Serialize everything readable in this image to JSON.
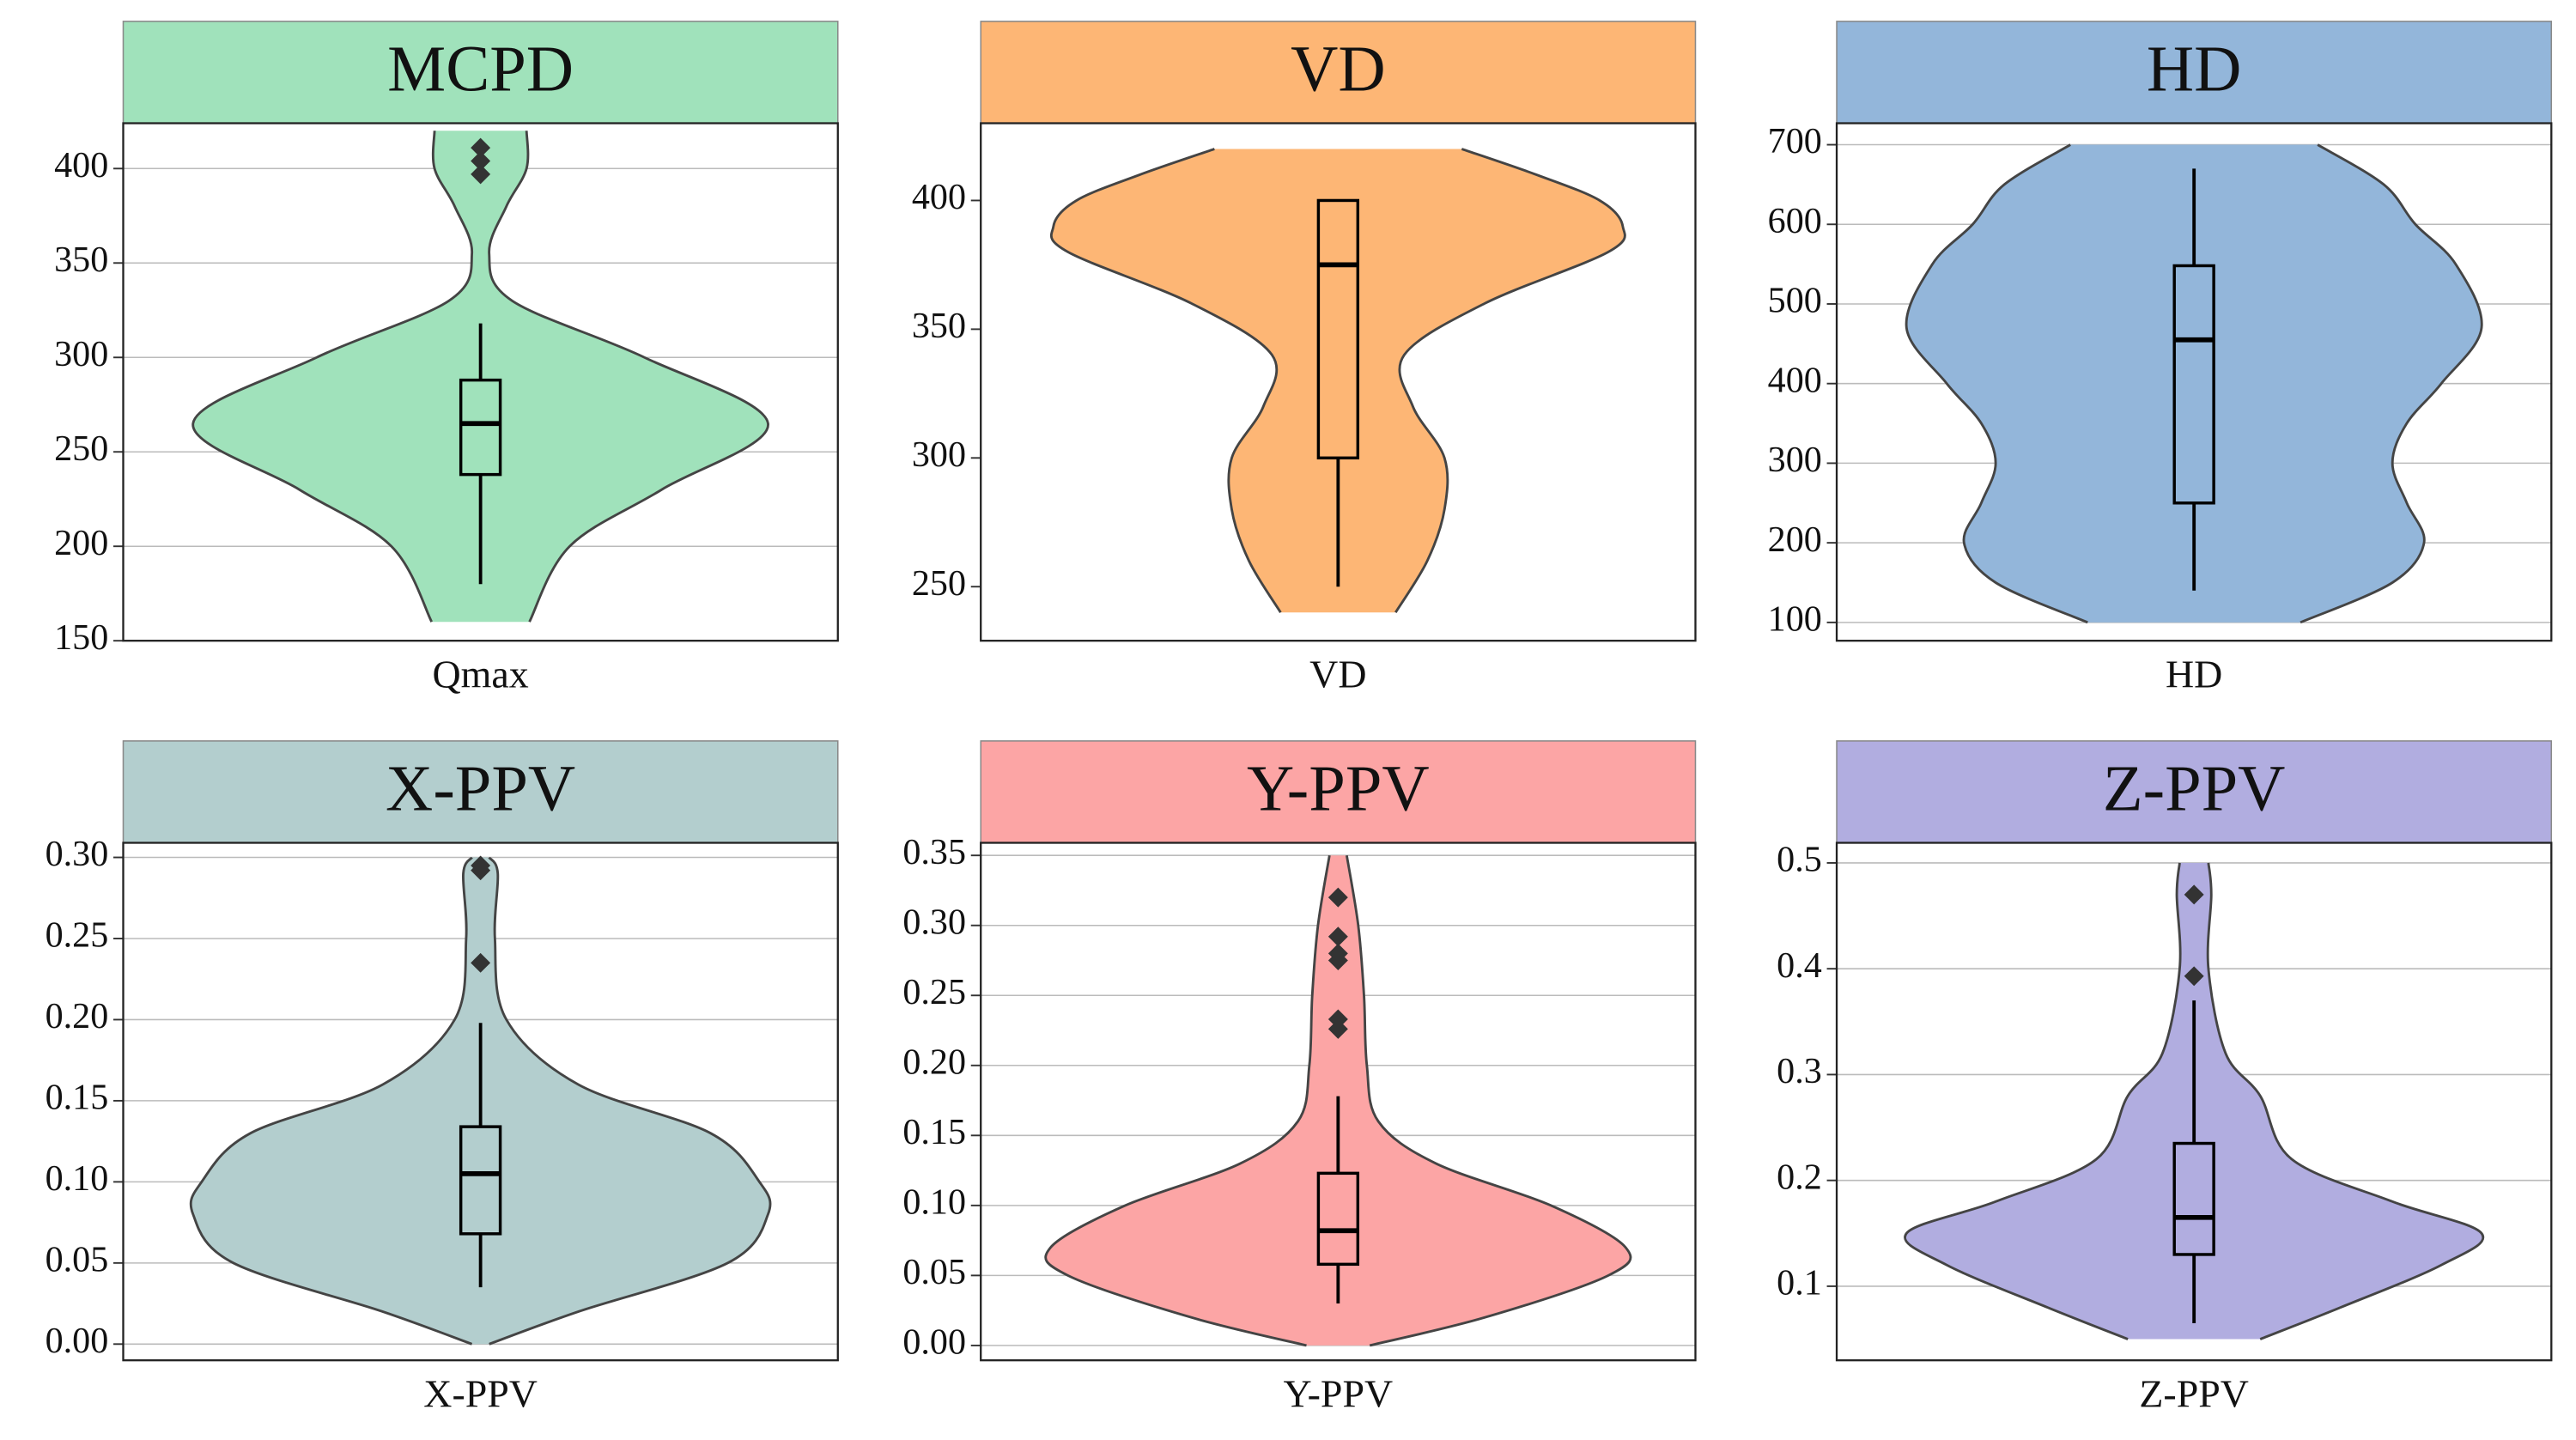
{
  "chart_data": [
    {
      "type": "violin",
      "title": "MCPD",
      "categories": [
        "Qmax"
      ],
      "color": "#a0e2bb",
      "ylim": [
        150,
        424
      ],
      "yticks": [
        150,
        200,
        250,
        300,
        350,
        400
      ],
      "grid": true,
      "box": {
        "whisker_low": 180,
        "q1": 238,
        "median": 265,
        "q3": 288,
        "whisker_high": 318
      },
      "outliers": [
        397,
        404,
        411
      ],
      "density": {
        "y": [
          160,
          200,
          230,
          265,
          300,
          330,
          355,
          380,
          400,
          420
        ],
        "width": [
          0.17,
          0.31,
          0.63,
          1.0,
          0.57,
          0.11,
          0.03,
          0.09,
          0.16,
          0.16
        ]
      }
    },
    {
      "type": "violin",
      "title": "VD",
      "categories": [
        "VD"
      ],
      "color": "#fdb675",
      "ylim": [
        229,
        430
      ],
      "yticks": [
        250,
        300,
        350,
        400
      ],
      "grid": false,
      "box": {
        "whisker_low": 250,
        "q1": 300,
        "median": 375,
        "q3": 400,
        "whisker_high": 400
      },
      "outliers": [],
      "density": {
        "y": [
          240,
          260,
          280,
          300,
          320,
          340,
          360,
          380,
          390,
          400,
          410,
          420
        ],
        "width": [
          0.2,
          0.31,
          0.37,
          0.37,
          0.26,
          0.23,
          0.51,
          0.94,
          0.99,
          0.91,
          0.69,
          0.43
        ]
      }
    },
    {
      "type": "violin",
      "title": "HD",
      "categories": [
        "HD"
      ],
      "color": "#93b6da",
      "ylim": [
        77,
        727
      ],
      "yticks": [
        100,
        200,
        300,
        400,
        500,
        600,
        700
      ],
      "grid": true,
      "box": {
        "whisker_low": 140,
        "q1": 250,
        "median": 455,
        "q3": 548,
        "whisker_high": 670
      },
      "outliers": [],
      "density": {
        "y": [
          100,
          150,
          200,
          250,
          300,
          350,
          400,
          470,
          550,
          600,
          650,
          700
        ],
        "width": [
          0.37,
          0.69,
          0.8,
          0.74,
          0.69,
          0.74,
          0.86,
          1.0,
          0.91,
          0.77,
          0.66,
          0.43
        ]
      }
    },
    {
      "type": "violin",
      "title": "X-PPV",
      "categories": [
        "X-PPV"
      ],
      "color": "#b3cece",
      "ylim": [
        -0.01,
        0.309
      ],
      "yticks": [
        {
          "value": 0,
          "label": "0.00"
        },
        {
          "value": 0.05,
          "label": "0.05"
        },
        {
          "value": 0.1,
          "label": "0.10"
        },
        {
          "value": 0.15,
          "label": "0.15"
        },
        {
          "value": 0.2,
          "label": "0.20"
        },
        {
          "value": 0.25,
          "label": "0.25"
        },
        {
          "value": 0.3,
          "label": "0.30"
        }
      ],
      "grid": true,
      "box": {
        "whisker_low": 0.035,
        "q1": 0.068,
        "median": 0.105,
        "q3": 0.134,
        "whisker_high": 0.198
      },
      "outliers": [
        0.235,
        0.292,
        0.295
      ],
      "density": {
        "y": [
          0,
          0.02,
          0.05,
          0.08,
          0.1,
          0.13,
          0.16,
          0.2,
          0.25,
          0.29,
          0.3
        ],
        "width": [
          0.03,
          0.34,
          0.86,
          1.0,
          0.97,
          0.8,
          0.34,
          0.09,
          0.05,
          0.06,
          0.03
        ]
      }
    },
    {
      "type": "violin",
      "title": "Y-PPV",
      "categories": [
        "Y-PPV"
      ],
      "color": "#fca5a5",
      "ylim": [
        -0.0106,
        0.359
      ],
      "yticks": [
        {
          "value": 0,
          "label": "0.00"
        },
        {
          "value": 0.05,
          "label": "0.05"
        },
        {
          "value": 0.1,
          "label": "0.10"
        },
        {
          "value": 0.15,
          "label": "0.15"
        },
        {
          "value": 0.2,
          "label": "0.20"
        },
        {
          "value": 0.25,
          "label": "0.25"
        },
        {
          "value": 0.3,
          "label": "0.30"
        },
        {
          "value": 0.35,
          "label": "0.35"
        }
      ],
      "grid": true,
      "box": {
        "whisker_low": 0.03,
        "q1": 0.058,
        "median": 0.082,
        "q3": 0.123,
        "whisker_high": 0.178
      },
      "outliers": [
        0.226,
        0.233,
        0.275,
        0.28,
        0.292,
        0.32
      ],
      "density": {
        "y": [
          0,
          0.02,
          0.05,
          0.07,
          0.1,
          0.13,
          0.16,
          0.2,
          0.25,
          0.3,
          0.35
        ],
        "width": [
          0.11,
          0.51,
          0.94,
          1.0,
          0.74,
          0.34,
          0.14,
          0.1,
          0.09,
          0.07,
          0.03
        ]
      }
    },
    {
      "type": "violin",
      "title": "Z-PPV",
      "categories": [
        "Z-PPV"
      ],
      "color": "#b1ade0",
      "ylim": [
        0.03,
        0.519
      ],
      "yticks": [
        0.1,
        0.2,
        0.3,
        0.4,
        0.5
      ],
      "grid": true,
      "box": {
        "whisker_low": 0.065,
        "q1": 0.13,
        "median": 0.165,
        "q3": 0.235,
        "whisker_high": 0.37
      },
      "outliers": [
        0.393,
        0.47
      ],
      "density": {
        "y": [
          0.05,
          0.08,
          0.12,
          0.15,
          0.18,
          0.22,
          0.28,
          0.32,
          0.4,
          0.47,
          0.5
        ],
        "width": [
          0.23,
          0.51,
          0.86,
          1.0,
          0.69,
          0.34,
          0.23,
          0.11,
          0.05,
          0.06,
          0.05
        ]
      }
    }
  ]
}
